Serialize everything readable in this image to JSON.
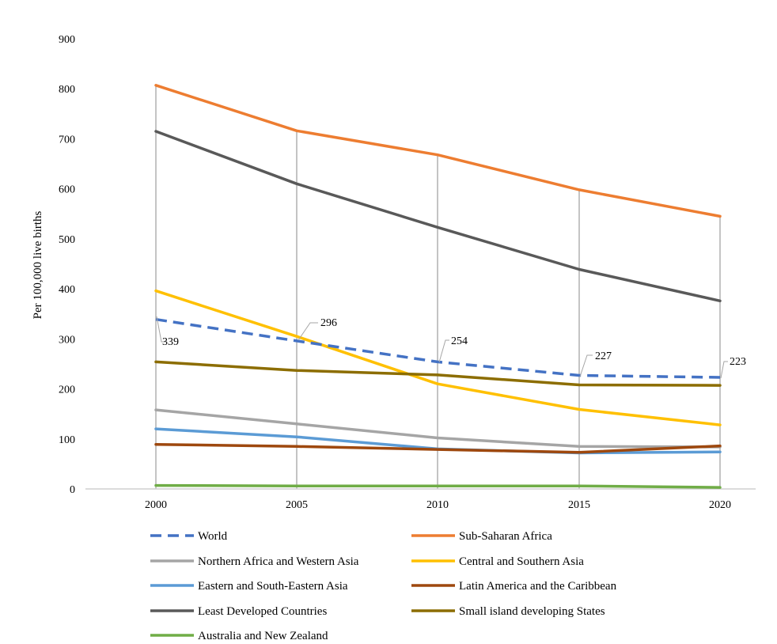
{
  "chart_data": {
    "type": "line",
    "title": "",
    "ylabel": "Per 100,000 live births",
    "xlabel": "",
    "x": [
      "2000",
      "2005",
      "2010",
      "2015",
      "2020"
    ],
    "ylim": [
      0,
      900
    ],
    "yticks": [
      "0",
      "100",
      "200",
      "300",
      "400",
      "500",
      "600",
      "700",
      "800",
      "900"
    ],
    "grid": "vertical",
    "legend_position": "bottom",
    "series": [
      {
        "name": "World",
        "values": [
          339,
          296,
          254,
          227,
          223
        ],
        "color": "#4472C4",
        "dashed": true,
        "labels": [
          "339",
          "296",
          "254",
          "227",
          "223"
        ]
      },
      {
        "name": "Sub-Saharan Africa",
        "values": [
          807,
          716,
          668,
          598,
          545
        ],
        "color": "#ED7D31"
      },
      {
        "name": "Northern Africa and Western Asia",
        "values": [
          158,
          130,
          102,
          85,
          84
        ],
        "color": "#A5A5A5"
      },
      {
        "name": "Central and Southern Asia",
        "values": [
          396,
          305,
          210,
          159,
          128
        ],
        "color": "#FFC000"
      },
      {
        "name": "Eastern and South-Eastern Asia",
        "values": [
          120,
          104,
          80,
          72,
          74
        ],
        "color": "#5B9BD5"
      },
      {
        "name": "Latin America and the Caribbean",
        "values": [
          89,
          85,
          79,
          73,
          86
        ],
        "color": "#9E480E"
      },
      {
        "name": "Least Developed Countries",
        "values": [
          715,
          610,
          523,
          439,
          376
        ],
        "color": "#595959"
      },
      {
        "name": "Small island developing States",
        "values": [
          254,
          237,
          228,
          208,
          207
        ],
        "color": "#8C6D00"
      },
      {
        "name": "Australia and New Zealand",
        "values": [
          7,
          6,
          6,
          6,
          3
        ],
        "color": "#70AD47"
      }
    ]
  }
}
